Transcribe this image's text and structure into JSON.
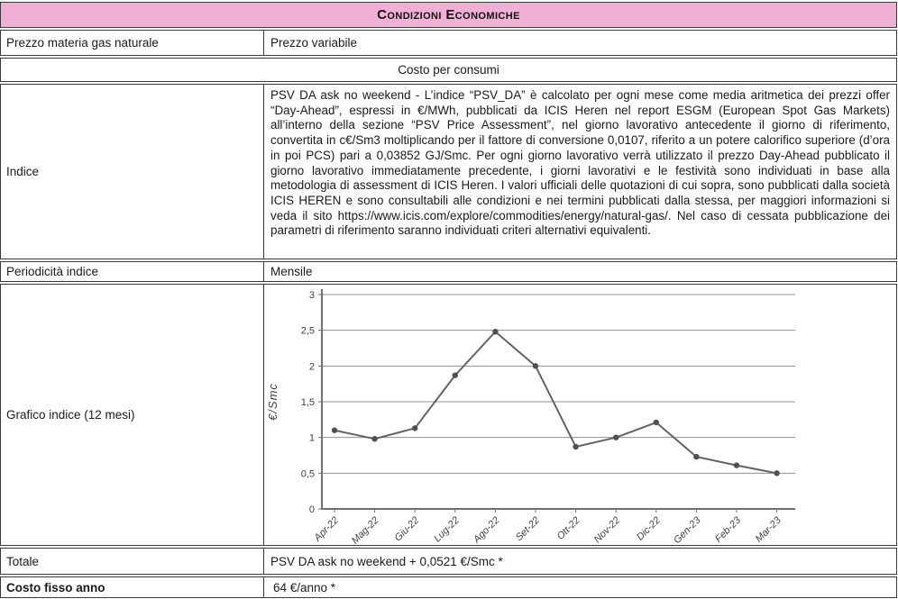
{
  "header": {
    "title": "Condizioni Economiche"
  },
  "table": {
    "prezzo_materia": {
      "label": "Prezzo materia gas naturale",
      "value": "Prezzo variabile"
    },
    "costo_consumi_header": "Costo per consumi",
    "indice": {
      "label": "Indice",
      "value": "PSV DA ask no weekend - L’indice “PSV_DA” è calcolato per ogni mese come media aritmetica dei prezzi offer “Day-Ahead”, espressi in €/MWh, pubblicati da ICIS Heren nel report ESGM (European Spot Gas Markets) all’interno della sezione “PSV Price Assessment”, nel giorno lavorativo antecedente il giorno di riferimento, convertita in c€/Sm3 moltiplicando per il fattore di conversione 0,0107, riferito a un potere calorifico superiore (d’ora in poi PCS) pari a 0,03852 GJ/Smc. Per ogni giorno lavorativo verrà utilizzato il prezzo Day-Ahead pubblicato il giorno lavorativo immediatamente precedente, i giorni lavorativi e le festività sono individuati in base alla metodologia di assessment di ICIS Heren. I valori ufficiali delle quotazioni di cui sopra, sono pubblicati dalla società ICIS HEREN e sono consultabili alle condizioni e nei termini pubblicati dalla stessa, per maggiori informazioni si veda il sito https://www.icis.com/explore/commodities/energy/natural-gas/. Nel caso di cessata pubblicazione dei parametri di riferimento saranno individuati criteri alternativi equivalenti."
    },
    "periodicita": {
      "label": "Periodicità indice",
      "value": "Mensile"
    },
    "grafico": {
      "label": "Grafico indice (12 mesi)"
    },
    "totale": {
      "label": "Totale",
      "value": "PSV DA ask no weekend + 0,0521 €/Smc *"
    },
    "costo_fisso": {
      "label": "Costo fisso anno",
      "value": "64 €/anno *"
    }
  },
  "chart_data": {
    "type": "line",
    "title": "",
    "xlabel": "",
    "ylabel": "€/Smc",
    "categories": [
      "Apr-22",
      "Mag-22",
      "Giu-22",
      "Lug-22",
      "Ago-22",
      "Set-22",
      "Ott-22",
      "Nov-22",
      "Dic-22",
      "Gen-23",
      "Feb-23",
      "Mar-23"
    ],
    "values": [
      1.1,
      0.98,
      1.13,
      1.87,
      2.48,
      2.0,
      0.87,
      1.0,
      1.21,
      0.73,
      0.61,
      0.5
    ],
    "ylim": [
      0,
      3
    ],
    "ytick_step": 0.5,
    "ytick_labels": [
      "0",
      "0,5",
      "1",
      "1,5",
      "2",
      "2,5",
      "3"
    ],
    "grid": true,
    "legend": "none",
    "line_color": "#636363",
    "marker_color": "#505050",
    "grid_color": "#8f8f8f",
    "axis_color": "#707070",
    "label_color": "#3f3f3f"
  },
  "colors": {
    "header_bg": "#f0b0d6",
    "border": "#3a3a3a"
  }
}
